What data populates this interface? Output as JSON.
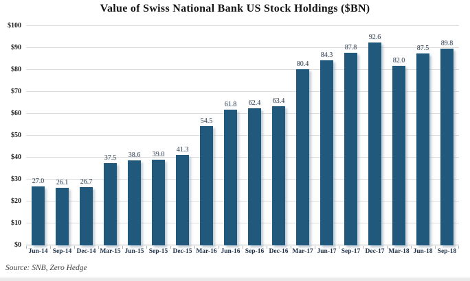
{
  "chart_data": {
    "type": "bar",
    "title": "Value of Swiss National Bank US Stock Holdings ($BN)",
    "categories": [
      "Jun-14",
      "Sep-14",
      "Dec-14",
      "Mar-15",
      "Jun-15",
      "Sep-15",
      "Dec-15",
      "Mar-16",
      "Jun-16",
      "Sep-16",
      "Dec-16",
      "Mar-17",
      "Jun-17",
      "Sep-17",
      "Dec-17",
      "Mar-18",
      "Jun-18",
      "Sep-18"
    ],
    "values": [
      27.0,
      26.1,
      26.7,
      37.5,
      38.6,
      39.0,
      41.3,
      54.5,
      61.8,
      62.4,
      63.4,
      80.4,
      84.3,
      87.8,
      92.6,
      82.0,
      87.5,
      89.8
    ],
    "xlabel": "",
    "ylabel": "",
    "ylim": [
      0,
      100
    ],
    "grid": true,
    "legend": "none",
    "bar_color": "#21597c",
    "y_ticks": [
      {
        "label": "$0",
        "value": 0
      },
      {
        "label": "$10",
        "value": 10
      },
      {
        "label": "$20",
        "value": 20
      },
      {
        "label": "$30",
        "value": 30
      },
      {
        "label": "$40",
        "value": 40
      },
      {
        "label": "$50",
        "value": 50
      },
      {
        "label": "$60",
        "value": 60
      },
      {
        "label": "$70",
        "value": 70
      },
      {
        "label": "$80",
        "value": 80
      },
      {
        "label": "$90",
        "value": 90
      },
      {
        "label": "$100",
        "value": 100
      }
    ]
  },
  "footer": {
    "source_note": "Source: SNB, Zero Hedge"
  }
}
